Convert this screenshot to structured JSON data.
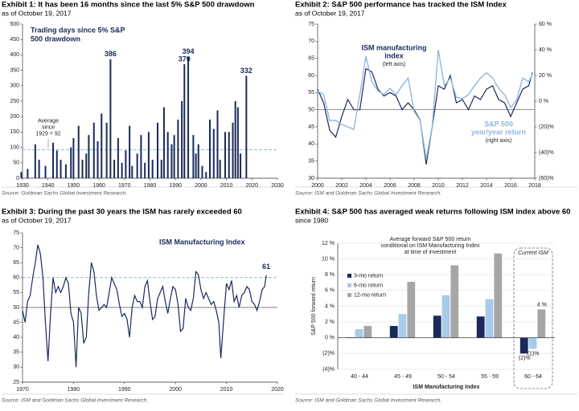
{
  "chart_data": [
    {
      "type": "bar",
      "title": "Exhibit 1: It has been 16 months since the last 5% S&P 500 drawdown",
      "subtitle": "as of October 19, 2017",
      "source": "Source: Goldman Sachs Global Investment Research.",
      "chart_title_lines": [
        "Trading days since 5% S&P",
        "500 drawdown"
      ],
      "average_label_lines": [
        "Average",
        "since",
        "1929 = 92"
      ],
      "color": "#1a2a5a",
      "x": [
        1929.5,
        1932,
        1935,
        1936.5,
        1939,
        1942,
        1943.5,
        1945,
        1947,
        1949,
        1950,
        1952,
        1953.5,
        1955,
        1956,
        1958,
        1959.5,
        1961,
        1963,
        1964.5,
        1966,
        1967.5,
        1969,
        1970.5,
        1972,
        1973,
        1975,
        1976.5,
        1978,
        1979.5,
        1981,
        1983,
        1984.5,
        1985.5,
        1987,
        1988.5,
        1989.5,
        1991,
        1992.5,
        1993.5,
        1995,
        1997,
        1998,
        1999,
        2000.5,
        2002,
        2003.5,
        2005,
        2006.5,
        2007.5,
        2009.5,
        2011,
        2012.5,
        2013.5,
        2014.5,
        2015.5,
        2017.8
      ],
      "values": [
        20,
        30,
        110,
        60,
        40,
        115,
        90,
        60,
        45,
        100,
        130,
        170,
        60,
        80,
        140,
        180,
        120,
        210,
        180,
        386,
        60,
        130,
        50,
        90,
        170,
        40,
        80,
        140,
        50,
        150,
        60,
        180,
        60,
        230,
        150,
        110,
        140,
        190,
        250,
        370,
        394,
        140,
        80,
        110,
        40,
        20,
        190,
        160,
        220,
        60,
        150,
        150,
        180,
        250,
        230,
        80,
        332
      ],
      "reference_lines": [
        {
          "value": 92,
          "style": "dashed"
        }
      ],
      "xlim": [
        1930,
        2030
      ],
      "xticks": [
        1930,
        1940,
        1950,
        1960,
        1970,
        1980,
        1990,
        2000,
        2010,
        2020,
        2030
      ],
      "ylim": [
        0,
        500
      ],
      "yticks": [
        0,
        50,
        100,
        150,
        200,
        250,
        300,
        350,
        400,
        450,
        500
      ],
      "grid": false
    },
    {
      "type": "line",
      "title": "Exhibit 2: S&P 500 performance has tracked the ISM Index",
      "subtitle": "as of October 19, 2017",
      "source": "Source: ISM and Goldman Sachs Global Investment Research.",
      "x": [
        2000,
        2000.5,
        2001,
        2001.5,
        2002,
        2002.5,
        2003,
        2003.5,
        2004,
        2004.5,
        2005,
        2005.5,
        2006,
        2006.5,
        2007,
        2007.5,
        2008,
        2008.5,
        2009,
        2009.5,
        2010,
        2010.5,
        2011,
        2011.5,
        2012,
        2012.5,
        2013,
        2013.5,
        2014,
        2014.5,
        2015,
        2015.5,
        2016,
        2016.5,
        2017,
        2017.5,
        2017.8
      ],
      "series": [
        {
          "name": "ISM manufacturing index",
          "name_lines": [
            "ISM manufacturing",
            "index"
          ],
          "axis_note": "(left axis)",
          "color": "#1a2a5a",
          "axis": "y",
          "values": [
            56,
            52,
            44,
            42,
            48,
            53,
            50,
            50,
            62,
            61,
            56,
            54,
            55,
            54,
            50,
            52,
            50,
            47,
            34,
            45,
            57,
            56,
            60,
            52,
            53,
            50,
            54,
            53,
            56,
            57,
            53,
            52,
            48,
            52,
            56,
            57,
            60.8
          ]
        },
        {
          "name": "S&P 500 year/year return",
          "name_lines": [
            "S&P 500",
            "year/year return"
          ],
          "axis_note": "(right axis)",
          "color": "#8fb8de",
          "axis": "y2",
          "values": [
            8,
            5,
            -15,
            -15,
            -18,
            -20,
            -22,
            5,
            35,
            15,
            8,
            5,
            10,
            5,
            12,
            18,
            -8,
            -15,
            -45,
            -20,
            40,
            12,
            18,
            3,
            2,
            5,
            12,
            18,
            22,
            18,
            10,
            5,
            -5,
            1,
            18,
            15,
            21
          ]
        }
      ],
      "reference_lines": [
        {
          "value": 50,
          "style": "solid"
        }
      ],
      "xlim": [
        2000,
        2018
      ],
      "xticks": [
        2000,
        2002,
        2004,
        2006,
        2008,
        2010,
        2012,
        2014,
        2016,
        2018
      ],
      "ylim": [
        30,
        75
      ],
      "yticks": [
        30,
        35,
        40,
        45,
        50,
        55,
        60,
        65,
        70,
        75
      ],
      "y2lim": [
        -60,
        60
      ],
      "y2ticks": [
        {
          "value": -60,
          "label": "(60)%"
        },
        {
          "value": -40,
          "label": "(40)%"
        },
        {
          "value": -20,
          "label": "(20)%"
        },
        {
          "value": 0,
          "label": "0 %"
        },
        {
          "value": 20,
          "label": "20 %"
        },
        {
          "value": 40,
          "label": "40 %"
        },
        {
          "value": 60,
          "label": "60 %"
        }
      ],
      "grid": false
    },
    {
      "type": "line",
      "title": "Exhibit 3: During the past 30 years the ISM has rarely exceeded 60",
      "subtitle": "as of October 19, 2017",
      "source": "Source: ISM and Goldman Sachs Global Investment Research.",
      "chart_title_lines": [
        "ISM Manufacturing Index"
      ],
      "color": "#1a2a5a",
      "end_label": "61",
      "x": [
        1970,
        1970.5,
        1971,
        1971.5,
        1972,
        1972.5,
        1973,
        1973.5,
        1974,
        1974.5,
        1975,
        1975.5,
        1976,
        1976.5,
        1977,
        1977.5,
        1978,
        1978.5,
        1979,
        1979.5,
        1980,
        1980.5,
        1981,
        1981.5,
        1982,
        1982.5,
        1983,
        1983.5,
        1984,
        1984.5,
        1985,
        1985.5,
        1986,
        1986.5,
        1987,
        1987.5,
        1988,
        1988.5,
        1989,
        1989.5,
        1990,
        1990.5,
        1991,
        1991.5,
        1992,
        1992.5,
        1993,
        1993.5,
        1994,
        1994.5,
        1995,
        1995.5,
        1996,
        1996.5,
        1997,
        1997.5,
        1998,
        1998.5,
        1999,
        1999.5,
        2000,
        2000.5,
        2001,
        2001.5,
        2002,
        2002.5,
        2003,
        2003.5,
        2004,
        2004.5,
        2005,
        2005.5,
        2006,
        2006.5,
        2007,
        2007.5,
        2008,
        2008.5,
        2008.9,
        2009.5,
        2010,
        2010.5,
        2011,
        2011.5,
        2012,
        2012.5,
        2013,
        2013.5,
        2014,
        2014.5,
        2015,
        2015.5,
        2016,
        2016.5,
        2017,
        2017.5,
        2017.8
      ],
      "values": [
        49,
        45,
        52,
        54,
        60,
        65,
        71,
        68,
        60,
        45,
        32,
        48,
        60,
        55,
        57,
        55,
        57,
        60,
        58,
        48,
        45,
        30,
        50,
        48,
        38,
        40,
        55,
        65,
        62,
        54,
        49,
        50,
        51,
        50,
        55,
        60,
        58,
        56,
        51,
        47,
        48,
        46,
        40,
        50,
        54,
        52,
        52,
        50,
        57,
        59,
        52,
        46,
        47,
        53,
        55,
        57,
        52,
        48,
        53,
        57,
        56,
        51,
        42,
        43,
        53,
        50,
        49,
        53,
        62,
        61,
        56,
        53,
        55,
        53,
        51,
        52,
        49,
        45,
        33,
        47,
        58,
        56,
        59,
        52,
        54,
        50,
        54,
        55,
        57,
        56,
        52,
        51,
        49,
        52,
        56,
        57,
        60.8
      ],
      "reference_lines": [
        {
          "value": 50,
          "style": "solid"
        },
        {
          "value": 60,
          "style": "dashed"
        }
      ],
      "xlim": [
        1970,
        2020
      ],
      "xticks": [
        1970,
        1980,
        1990,
        2000,
        2010,
        2020
      ],
      "ylim": [
        25,
        75
      ],
      "yticks": [
        25,
        30,
        35,
        40,
        45,
        50,
        55,
        60,
        65,
        70,
        75
      ],
      "grid": false
    },
    {
      "type": "bar",
      "title": "Exhibit 4: S&P 500 has averaged weak returns following ISM index above 60",
      "subtitle": "since 1980",
      "source": "Source: ISM and Goldman Sachs Global Investment Research.",
      "chart_title_lines": [
        "Average forward S&P 500 return",
        "conditional on ISM Manufacturing Index",
        "at time of investment"
      ],
      "y_label": "S&P 500 forward return",
      "x_label": "ISM Manufacturing Index",
      "highlight_label": "Current ISM",
      "categories": [
        "40 - 44",
        "45 - 49",
        "50 - 54",
        "55 - 59",
        "60 - 64"
      ],
      "series": [
        {
          "name": "3-mo return",
          "color": "#1a2a5a",
          "values": [
            0.05,
            1.5,
            2.8,
            2.7,
            -2.0
          ],
          "value_labels": [
            null,
            null,
            null,
            null,
            "(2)%"
          ]
        },
        {
          "name": "6-mo return",
          "color": "#a9cbea",
          "values": [
            1.1,
            3.0,
            5.4,
            4.9,
            -1.4
          ],
          "value_labels": [
            null,
            null,
            null,
            null,
            "(1)%"
          ]
        },
        {
          "name": "12-mo return",
          "color": "#a6a6a6",
          "values": [
            1.5,
            7.1,
            9.2,
            10.7,
            3.6
          ],
          "value_labels": [
            null,
            null,
            null,
            null,
            "4 %"
          ]
        }
      ],
      "ylim": [
        -4,
        12
      ],
      "yticks": [
        {
          "value": -4,
          "label": "(4)%"
        },
        {
          "value": -2,
          "label": "(2)%"
        },
        {
          "value": 0,
          "label": "0 %"
        },
        {
          "value": 2,
          "label": "2 %"
        },
        {
          "value": 4,
          "label": "4 %"
        },
        {
          "value": 6,
          "label": "6 %"
        },
        {
          "value": 8,
          "label": "8 %"
        },
        {
          "value": 10,
          "label": "10 %"
        },
        {
          "value": 12,
          "label": "12 %"
        }
      ],
      "grid": true
    }
  ]
}
